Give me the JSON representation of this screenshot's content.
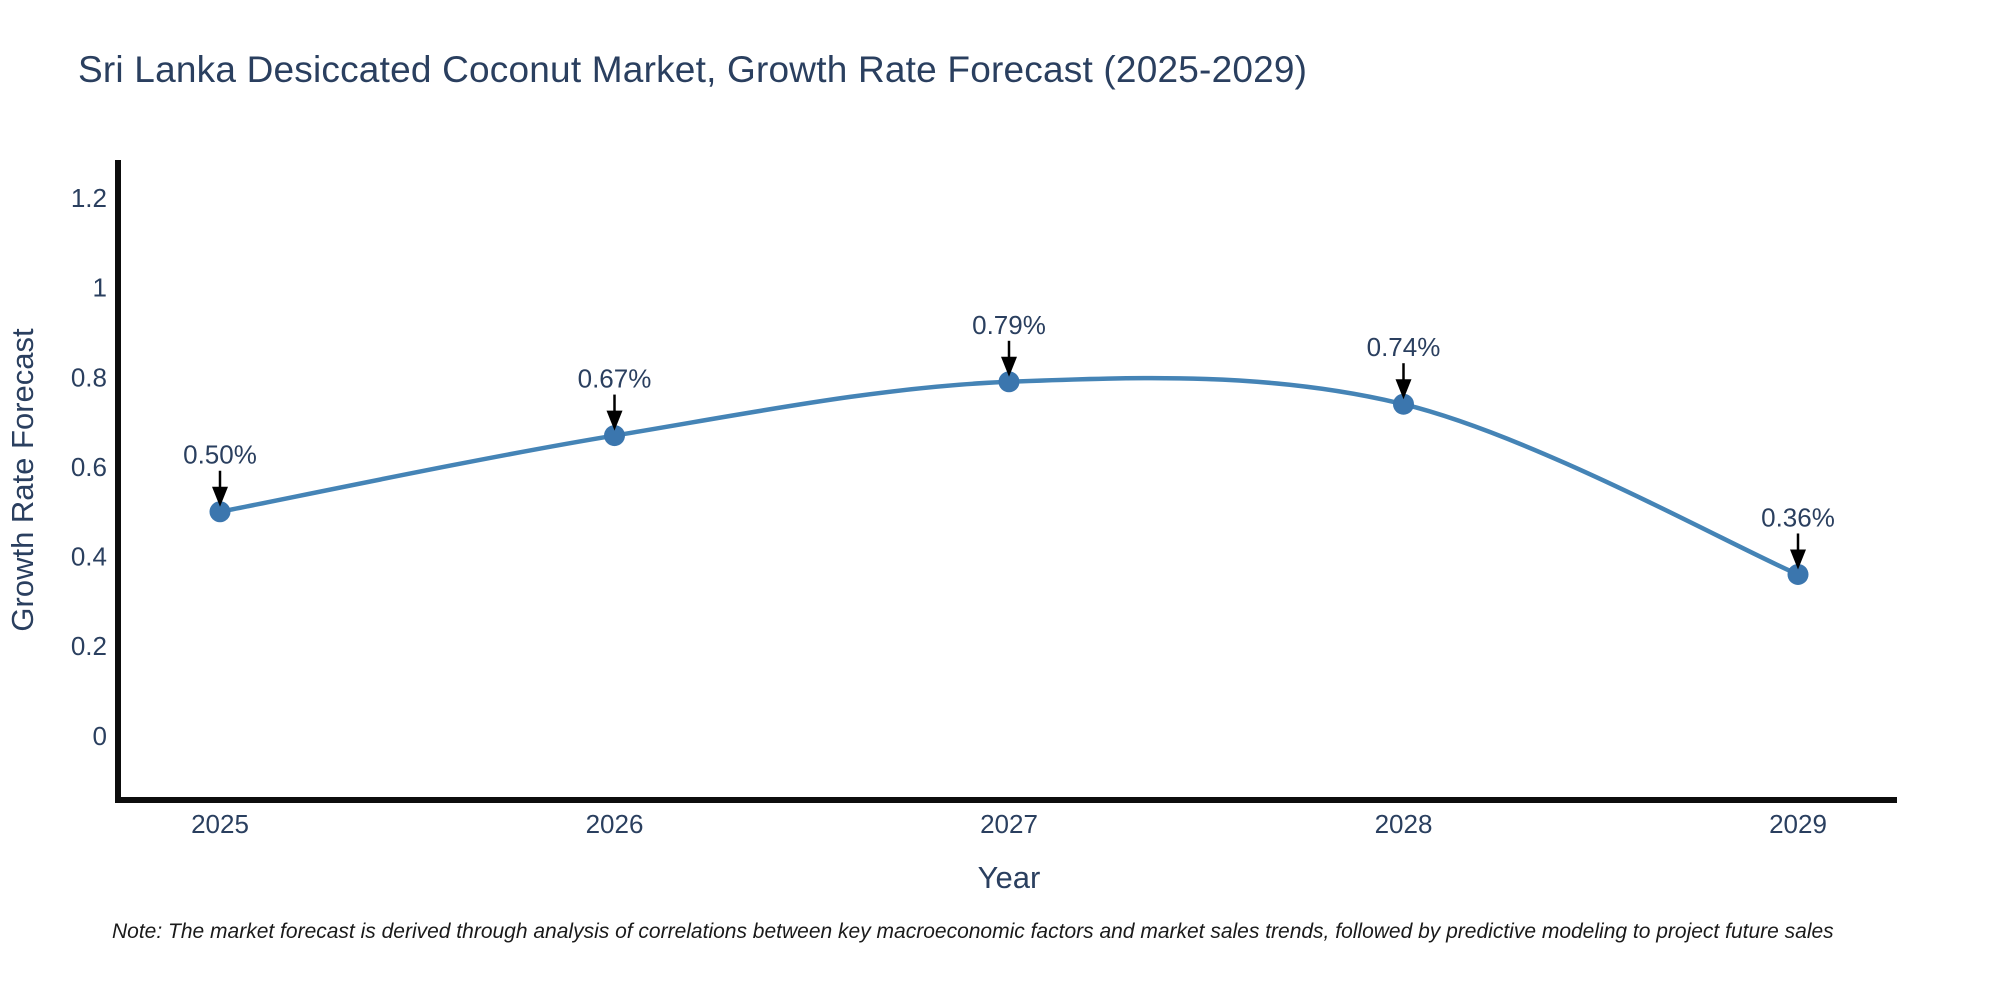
{
  "title": {
    "text": "Sri Lanka Desiccated Coconut Market, Growth Rate Forecast (2025-2029)",
    "color": "#2a3f5f"
  },
  "note": {
    "text": "Note: The market forecast is derived through analysis of correlations between key macroeconomic factors and market sales trends, followed by predictive modeling to project future sales"
  },
  "chart_data": {
    "type": "line",
    "title": "Sri Lanka Desiccated Coconut Market, Growth Rate Forecast (2025-2029)",
    "categories": [
      "2025",
      "2026",
      "2027",
      "2028",
      "2029"
    ],
    "series": [
      {
        "name": "Growth Rate Forecast",
        "values": [
          0.5,
          0.67,
          0.79,
          0.74,
          0.36
        ]
      }
    ],
    "point_labels": [
      "0.50%",
      "0.67%",
      "0.79%",
      "0.74%",
      "0.36%"
    ],
    "xlabel": "Year",
    "ylabel": "Growth Rate Forecast",
    "yticks": [
      0,
      0.2,
      0.4,
      0.6,
      0.8,
      1,
      1.2
    ],
    "ylim": [
      -0.15,
      1.285
    ],
    "grid": false,
    "legend": "none",
    "line_shape": "spline",
    "annotations_have_arrows": true,
    "colors": {
      "line": "#4584b6",
      "marker": "#3b76ae",
      "axis": "#0d0d0d",
      "text": "#2a3f5f",
      "annotation_arrow": "#000000",
      "note_text": "#1a1a1a",
      "background": "#ffffff"
    }
  }
}
